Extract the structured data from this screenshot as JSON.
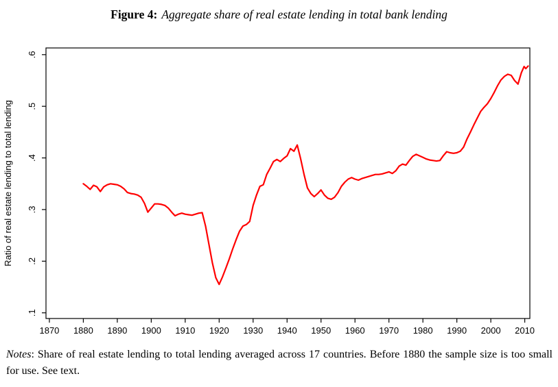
{
  "figure": {
    "label": "Figure 4:",
    "title": "Aggregate share of real estate lending in total bank lending"
  },
  "notes": {
    "label": "Notes",
    "text": ": Share of real estate lending to total lending averaged across 17 countries. Before 1880 the sample size is too small for use. See text."
  },
  "chart_data": {
    "type": "line",
    "title": "Figure 4: Aggregate share of real estate lending in total bank lending",
    "xlabel": "",
    "ylabel": "Ratio of real estate lending to total lending",
    "xlim": [
      1869,
      2011.5
    ],
    "ylim": [
      0.089,
      0.613
    ],
    "x_ticks": [
      1870,
      1880,
      1890,
      1900,
      1910,
      1920,
      1930,
      1940,
      1950,
      1960,
      1970,
      1980,
      1990,
      2000,
      2010
    ],
    "y_ticks": [
      0.1,
      0.2,
      0.3,
      0.4,
      0.5,
      0.6
    ],
    "y_tick_labels": [
      ".1",
      ".2",
      ".3",
      ".4",
      ".5",
      ".6"
    ],
    "grid": false,
    "legend": "none",
    "line_color": "#ff0000",
    "frame_color": "#000000",
    "series": [
      {
        "name": "Ratio of real estate lending to total lending",
        "x": [
          1880,
          1881,
          1882,
          1883,
          1884,
          1885,
          1886,
          1887,
          1888,
          1889,
          1890,
          1891,
          1892,
          1893,
          1894,
          1895,
          1896,
          1897,
          1898,
          1899,
          1900,
          1901,
          1902,
          1903,
          1904,
          1905,
          1906,
          1907,
          1908,
          1909,
          1910,
          1911,
          1912,
          1913,
          1914,
          1915,
          1916,
          1917,
          1918,
          1919,
          1920,
          1921,
          1922,
          1923,
          1924,
          1925,
          1926,
          1927,
          1928,
          1929,
          1930,
          1931,
          1932,
          1933,
          1934,
          1935,
          1936,
          1937,
          1938,
          1939,
          1940,
          1941,
          1942,
          1943,
          1944,
          1945,
          1946,
          1947,
          1948,
          1949,
          1950,
          1951,
          1952,
          1953,
          1954,
          1955,
          1956,
          1957,
          1958,
          1959,
          1960,
          1961,
          1962,
          1963,
          1964,
          1965,
          1966,
          1967,
          1968,
          1969,
          1970,
          1971,
          1972,
          1973,
          1974,
          1975,
          1976,
          1977,
          1978,
          1979,
          1980,
          1981,
          1982,
          1983,
          1984,
          1985,
          1986,
          1987,
          1988,
          1989,
          1990,
          1991,
          1992,
          1993,
          1994,
          1995,
          1996,
          1997,
          1998,
          1999,
          2000,
          2001,
          2002,
          2003,
          2004,
          2005,
          2006,
          2007,
          2008,
          2009,
          2009.8,
          2010.3,
          2011
        ],
        "values": [
          0.35,
          0.345,
          0.339,
          0.347,
          0.344,
          0.335,
          0.344,
          0.348,
          0.35,
          0.349,
          0.348,
          0.345,
          0.34,
          0.333,
          0.331,
          0.33,
          0.328,
          0.324,
          0.312,
          0.295,
          0.303,
          0.311,
          0.311,
          0.31,
          0.308,
          0.303,
          0.295,
          0.288,
          0.291,
          0.293,
          0.291,
          0.29,
          0.289,
          0.291,
          0.293,
          0.294,
          0.268,
          0.232,
          0.197,
          0.168,
          0.155,
          0.17,
          0.187,
          0.205,
          0.224,
          0.242,
          0.258,
          0.268,
          0.271,
          0.277,
          0.308,
          0.328,
          0.345,
          0.348,
          0.368,
          0.38,
          0.393,
          0.397,
          0.393,
          0.399,
          0.404,
          0.418,
          0.413,
          0.425,
          0.398,
          0.368,
          0.342,
          0.331,
          0.325,
          0.331,
          0.338,
          0.328,
          0.322,
          0.32,
          0.324,
          0.333,
          0.345,
          0.353,
          0.359,
          0.362,
          0.359,
          0.357,
          0.36,
          0.362,
          0.364,
          0.366,
          0.368,
          0.368,
          0.369,
          0.371,
          0.373,
          0.37,
          0.375,
          0.384,
          0.388,
          0.386,
          0.395,
          0.403,
          0.407,
          0.404,
          0.401,
          0.398,
          0.396,
          0.395,
          0.394,
          0.395,
          0.404,
          0.412,
          0.41,
          0.409,
          0.41,
          0.413,
          0.421,
          0.437,
          0.45,
          0.464,
          0.477,
          0.49,
          0.498,
          0.505,
          0.515,
          0.527,
          0.54,
          0.551,
          0.558,
          0.562,
          0.56,
          0.55,
          0.543,
          0.565,
          0.577,
          0.573,
          0.578
        ]
      }
    ]
  }
}
